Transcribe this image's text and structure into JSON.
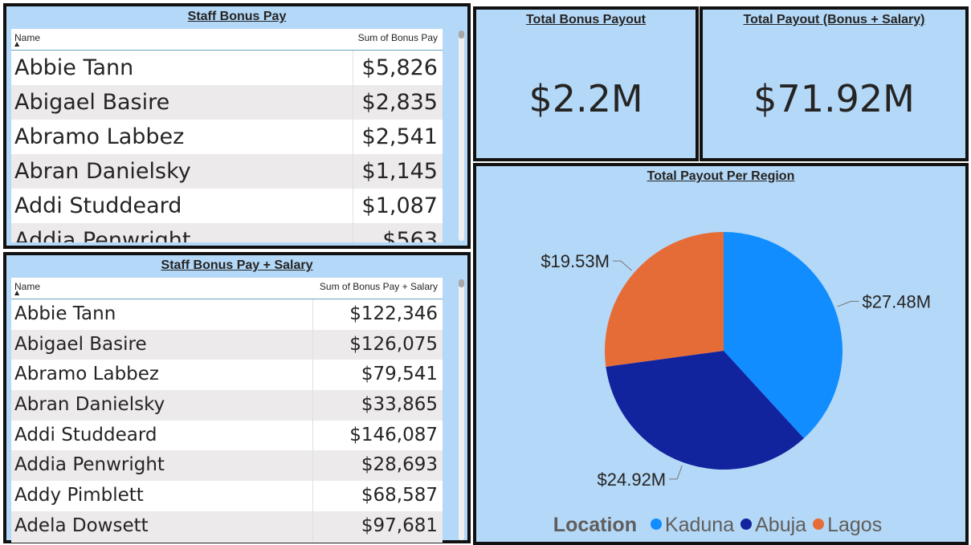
{
  "colors": {
    "panel_bg": "#b4d8f7",
    "kaduna": "#118dff",
    "abuja": "#12239e",
    "lagos": "#e66c37"
  },
  "bonus_table": {
    "title": "Staff Bonus Pay",
    "col_name": "Name",
    "sort_indicator": "▲",
    "col_value": "Sum of Bonus Pay",
    "rows": [
      {
        "name": "Abbie Tann",
        "value": "$5,826"
      },
      {
        "name": "Abigael Basire",
        "value": "$2,835"
      },
      {
        "name": "Abramo Labbez",
        "value": "$2,541"
      },
      {
        "name": "Abran Danielsky",
        "value": "$1,145"
      },
      {
        "name": "Addi Studdeard",
        "value": "$1,087"
      },
      {
        "name": "Addia Penwright",
        "value": "$563"
      }
    ]
  },
  "salary_table": {
    "title": "Staff Bonus Pay + Salary",
    "col_name": "Name",
    "sort_indicator": "▲",
    "col_value": "Sum of Bonus Pay + Salary",
    "rows": [
      {
        "name": "Abbie Tann",
        "value": "$122,346"
      },
      {
        "name": "Abigael Basire",
        "value": "$126,075"
      },
      {
        "name": "Abramo Labbez",
        "value": "$79,541"
      },
      {
        "name": "Abran Danielsky",
        "value": "$33,865"
      },
      {
        "name": "Addi Studdeard",
        "value": "$146,087"
      },
      {
        "name": "Addia Penwright",
        "value": "$28,693"
      },
      {
        "name": "Addy Pimblett",
        "value": "$68,587"
      },
      {
        "name": "Adela Dowsett",
        "value": "$97,681"
      }
    ]
  },
  "kpi_bonus": {
    "title": "Total Bonus Payout",
    "value": "$2.2M"
  },
  "kpi_total": {
    "title": "Total Payout (Bonus + Salary)",
    "value": "$71.92M"
  },
  "chart_data": {
    "type": "pie",
    "title": "Total Payout Per Region",
    "legend_title": "Location",
    "legend_position": "bottom",
    "slices": [
      {
        "name": "Kaduna",
        "value": 27.48,
        "label": "$27.48M",
        "color": "#118dff"
      },
      {
        "name": "Abuja",
        "value": 24.92,
        "label": "$24.92M",
        "color": "#12239e"
      },
      {
        "name": "Lagos",
        "value": 19.53,
        "label": "$19.53M",
        "color": "#e66c37"
      }
    ]
  }
}
